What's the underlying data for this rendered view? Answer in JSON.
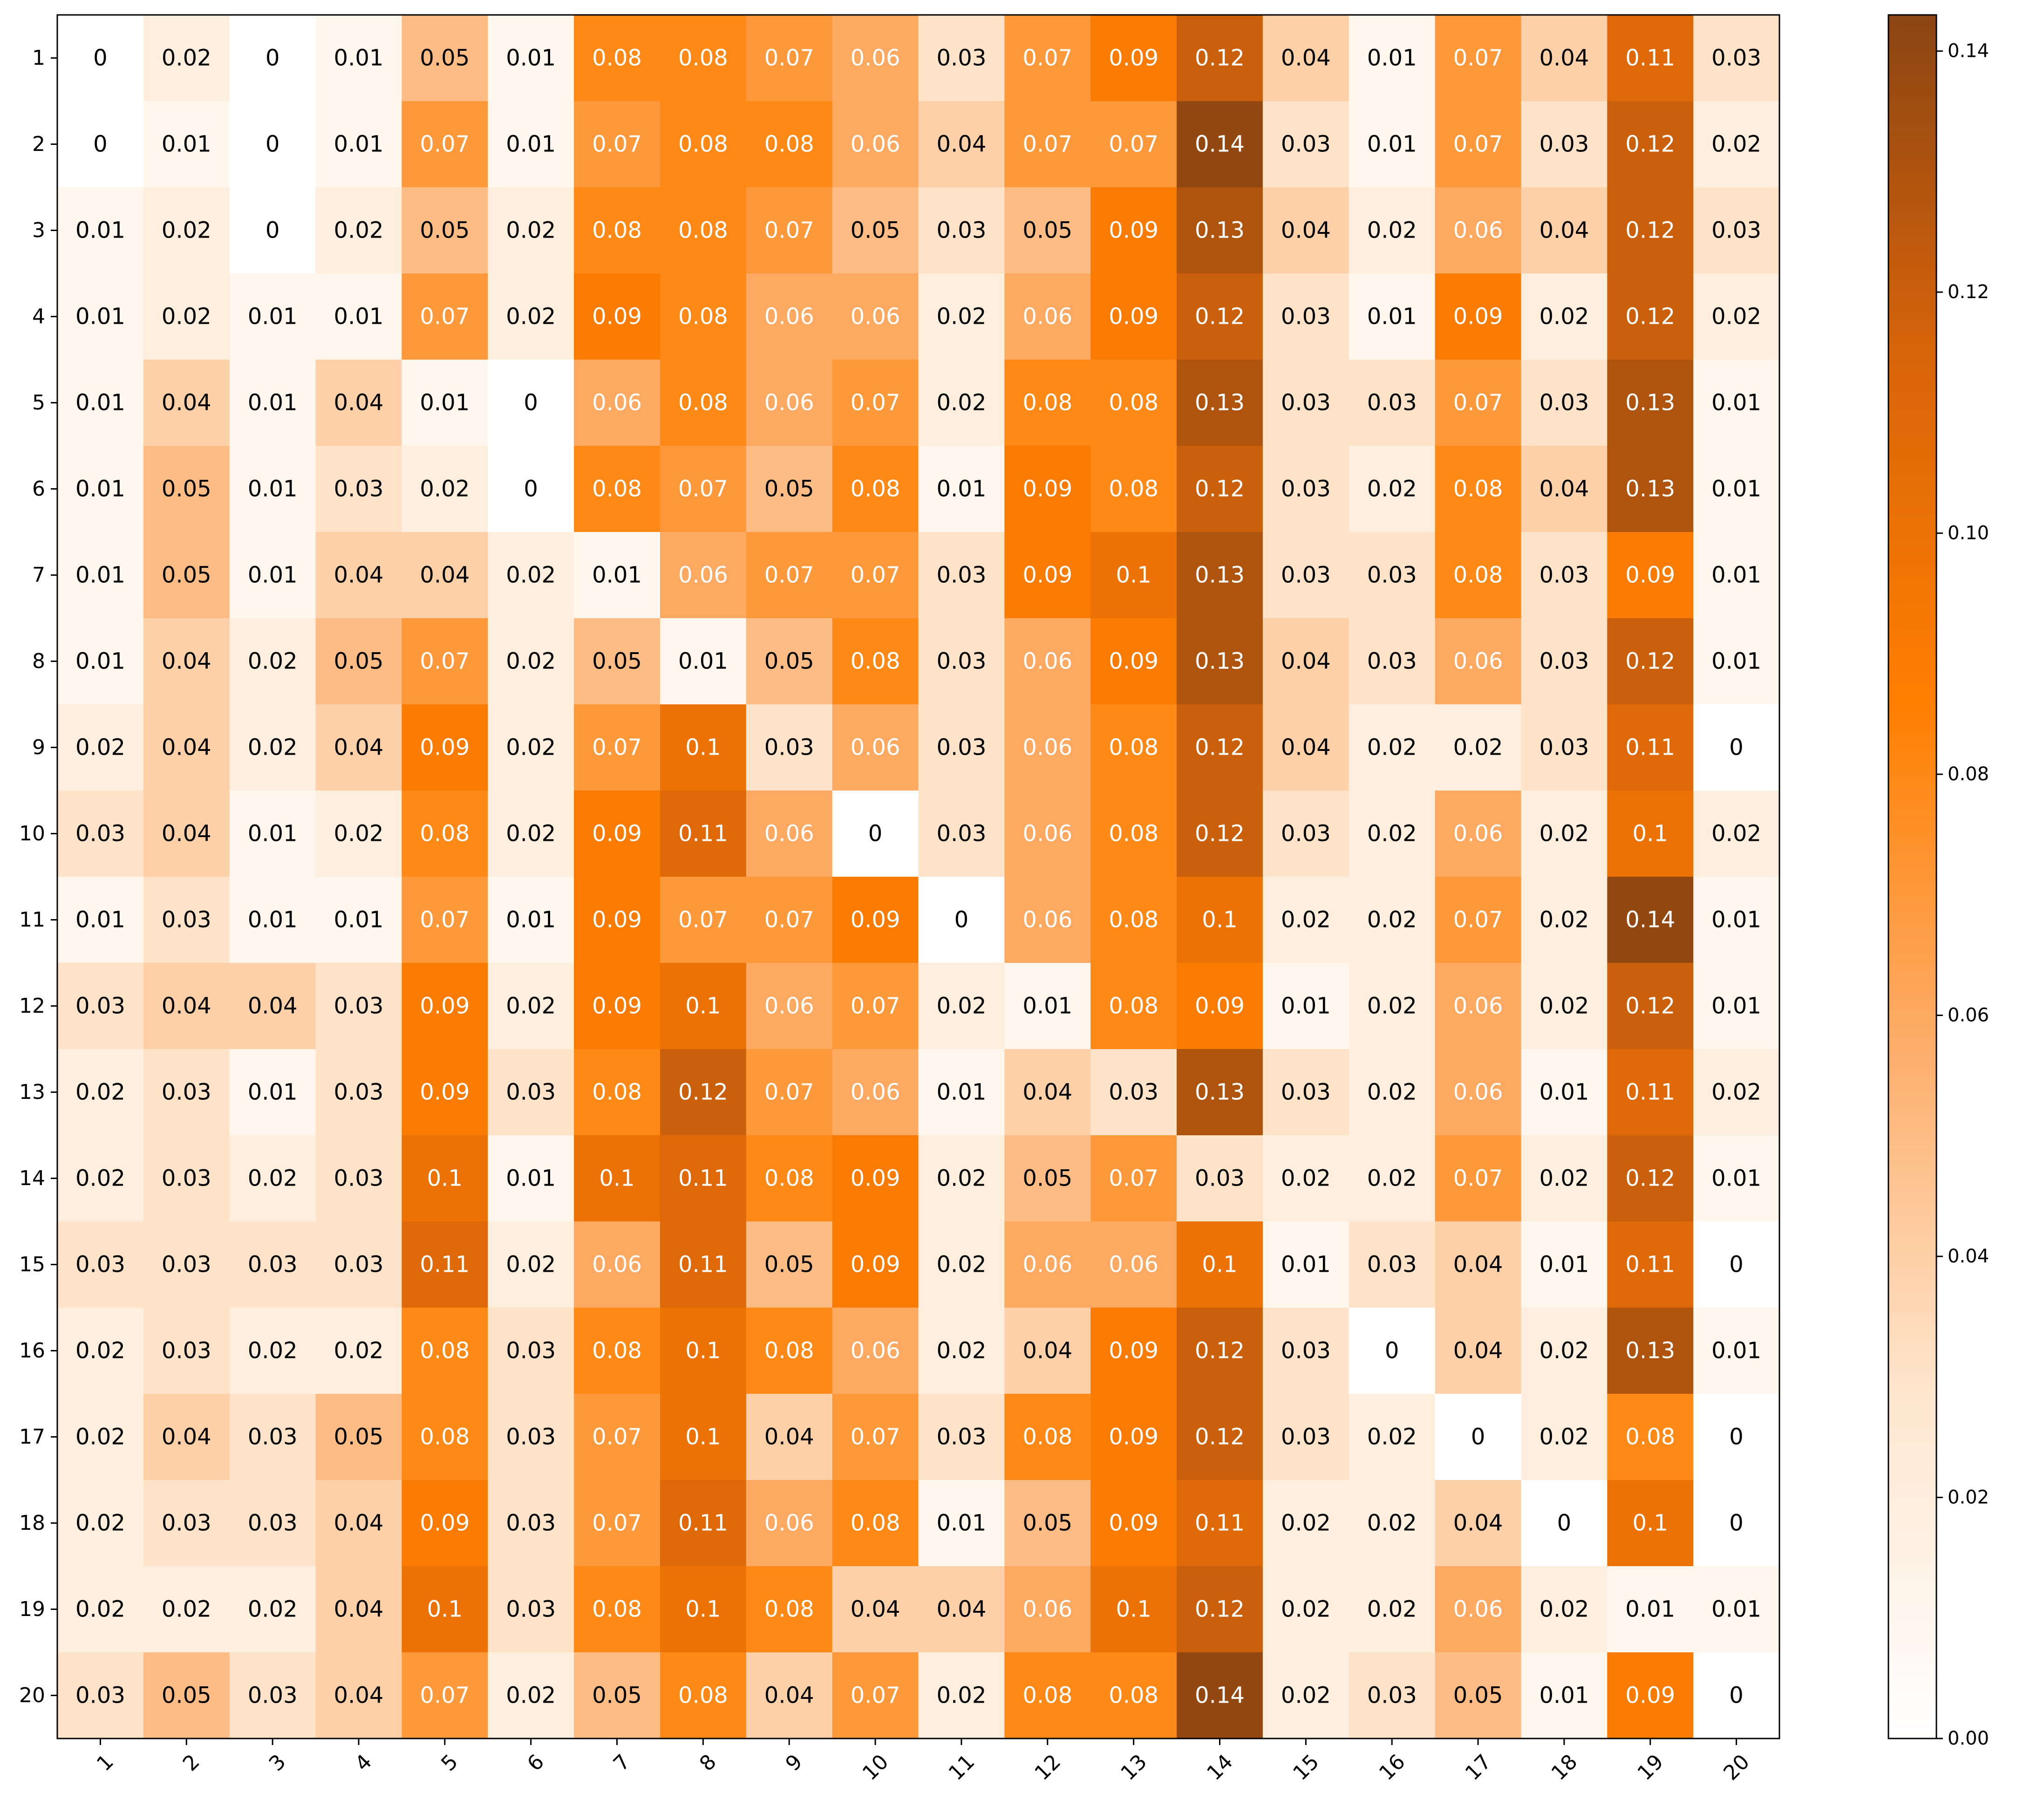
{
  "chart_data": {
    "type": "heatmap",
    "title": "",
    "xlabel": "",
    "ylabel": "",
    "x_categories": [
      "1",
      "2",
      "3",
      "4",
      "5",
      "6",
      "7",
      "8",
      "9",
      "10",
      "11",
      "12",
      "13",
      "14",
      "15",
      "16",
      "17",
      "18",
      "19",
      "20"
    ],
    "y_categories": [
      "1",
      "2",
      "3",
      "4",
      "5",
      "6",
      "7",
      "8",
      "9",
      "10",
      "11",
      "12",
      "13",
      "14",
      "15",
      "16",
      "17",
      "18",
      "19",
      "20"
    ],
    "values": [
      [
        0.0,
        0.02,
        0.0,
        0.01,
        0.05,
        0.01,
        0.08,
        0.08,
        0.07,
        0.06,
        0.03,
        0.07,
        0.09,
        0.12,
        0.04,
        0.01,
        0.07,
        0.04,
        0.11,
        0.03
      ],
      [
        0.0,
        0.01,
        0.0,
        0.01,
        0.07,
        0.01,
        0.07,
        0.08,
        0.08,
        0.06,
        0.04,
        0.07,
        0.07,
        0.14,
        0.03,
        0.01,
        0.07,
        0.03,
        0.12,
        0.02
      ],
      [
        0.01,
        0.02,
        0.0,
        0.02,
        0.05,
        0.02,
        0.08,
        0.08,
        0.07,
        0.05,
        0.03,
        0.05,
        0.09,
        0.13,
        0.04,
        0.02,
        0.06,
        0.04,
        0.12,
        0.03
      ],
      [
        0.01,
        0.02,
        0.01,
        0.01,
        0.07,
        0.02,
        0.09,
        0.08,
        0.06,
        0.06,
        0.02,
        0.06,
        0.09,
        0.12,
        0.03,
        0.01,
        0.09,
        0.02,
        0.12,
        0.02
      ],
      [
        0.01,
        0.04,
        0.01,
        0.04,
        0.01,
        0.0,
        0.06,
        0.08,
        0.06,
        0.07,
        0.02,
        0.08,
        0.08,
        0.13,
        0.03,
        0.03,
        0.07,
        0.03,
        0.13,
        0.01
      ],
      [
        0.01,
        0.05,
        0.01,
        0.03,
        0.02,
        0.0,
        0.08,
        0.07,
        0.05,
        0.08,
        0.01,
        0.09,
        0.08,
        0.12,
        0.03,
        0.02,
        0.08,
        0.04,
        0.13,
        0.01
      ],
      [
        0.01,
        0.05,
        0.01,
        0.04,
        0.04,
        0.02,
        0.01,
        0.06,
        0.07,
        0.07,
        0.03,
        0.09,
        0.1,
        0.13,
        0.03,
        0.03,
        0.08,
        0.03,
        0.09,
        0.01
      ],
      [
        0.01,
        0.04,
        0.02,
        0.05,
        0.07,
        0.02,
        0.05,
        0.01,
        0.05,
        0.08,
        0.03,
        0.06,
        0.09,
        0.13,
        0.04,
        0.03,
        0.06,
        0.03,
        0.12,
        0.01
      ],
      [
        0.02,
        0.04,
        0.02,
        0.04,
        0.09,
        0.02,
        0.07,
        0.1,
        0.03,
        0.06,
        0.03,
        0.06,
        0.08,
        0.12,
        0.04,
        0.02,
        0.02,
        0.03,
        0.11,
        0.0
      ],
      [
        0.03,
        0.04,
        0.01,
        0.02,
        0.08,
        0.02,
        0.09,
        0.11,
        0.06,
        0.0,
        0.03,
        0.06,
        0.08,
        0.12,
        0.03,
        0.02,
        0.06,
        0.02,
        0.1,
        0.02
      ],
      [
        0.01,
        0.03,
        0.01,
        0.01,
        0.07,
        0.01,
        0.09,
        0.07,
        0.07,
        0.09,
        0.0,
        0.06,
        0.08,
        0.1,
        0.02,
        0.02,
        0.07,
        0.02,
        0.14,
        0.01
      ],
      [
        0.03,
        0.04,
        0.04,
        0.03,
        0.09,
        0.02,
        0.09,
        0.1,
        0.06,
        0.07,
        0.02,
        0.01,
        0.08,
        0.09,
        0.01,
        0.02,
        0.06,
        0.02,
        0.12,
        0.01
      ],
      [
        0.02,
        0.03,
        0.01,
        0.03,
        0.09,
        0.03,
        0.08,
        0.12,
        0.07,
        0.06,
        0.01,
        0.04,
        0.03,
        0.13,
        0.03,
        0.02,
        0.06,
        0.01,
        0.11,
        0.02
      ],
      [
        0.02,
        0.03,
        0.02,
        0.03,
        0.1,
        0.01,
        0.1,
        0.11,
        0.08,
        0.09,
        0.02,
        0.05,
        0.07,
        0.03,
        0.02,
        0.02,
        0.07,
        0.02,
        0.12,
        0.01
      ],
      [
        0.03,
        0.03,
        0.03,
        0.03,
        0.11,
        0.02,
        0.06,
        0.11,
        0.05,
        0.09,
        0.02,
        0.06,
        0.06,
        0.1,
        0.01,
        0.03,
        0.04,
        0.01,
        0.11,
        0.0
      ],
      [
        0.02,
        0.03,
        0.02,
        0.02,
        0.08,
        0.03,
        0.08,
        0.1,
        0.08,
        0.06,
        0.02,
        0.04,
        0.09,
        0.12,
        0.03,
        0.0,
        0.04,
        0.02,
        0.13,
        0.01
      ],
      [
        0.02,
        0.04,
        0.03,
        0.05,
        0.08,
        0.03,
        0.07,
        0.1,
        0.04,
        0.07,
        0.03,
        0.08,
        0.09,
        0.12,
        0.03,
        0.02,
        0.0,
        0.02,
        0.08,
        0.0
      ],
      [
        0.02,
        0.03,
        0.03,
        0.04,
        0.09,
        0.03,
        0.07,
        0.11,
        0.06,
        0.08,
        0.01,
        0.05,
        0.09,
        0.11,
        0.02,
        0.02,
        0.04,
        0.0,
        0.1,
        0.0
      ],
      [
        0.02,
        0.02,
        0.02,
        0.04,
        0.1,
        0.03,
        0.08,
        0.1,
        0.08,
        0.04,
        0.04,
        0.06,
        0.1,
        0.12,
        0.02,
        0.02,
        0.06,
        0.02,
        0.01,
        0.01
      ],
      [
        0.03,
        0.05,
        0.03,
        0.04,
        0.07,
        0.02,
        0.05,
        0.08,
        0.04,
        0.07,
        0.02,
        0.08,
        0.08,
        0.14,
        0.02,
        0.03,
        0.05,
        0.01,
        0.09,
        0.0
      ]
    ],
    "value_range": [
      0.0,
      0.143
    ],
    "colormap": [
      "#ffffff",
      "#fee6ce",
      "#fdae6b",
      "#ff7f00",
      "#d9650a",
      "#8b4513"
    ],
    "colorbar": {
      "ticks": [
        0.0,
        0.02,
        0.04,
        0.06,
        0.08,
        0.1,
        0.12,
        0.14
      ],
      "tick_labels": [
        "0.00",
        "0.02",
        "0.04",
        "0.06",
        "0.08",
        "0.10",
        "0.12",
        "0.14"
      ]
    },
    "grid": false,
    "legend": "colorbar-right"
  }
}
